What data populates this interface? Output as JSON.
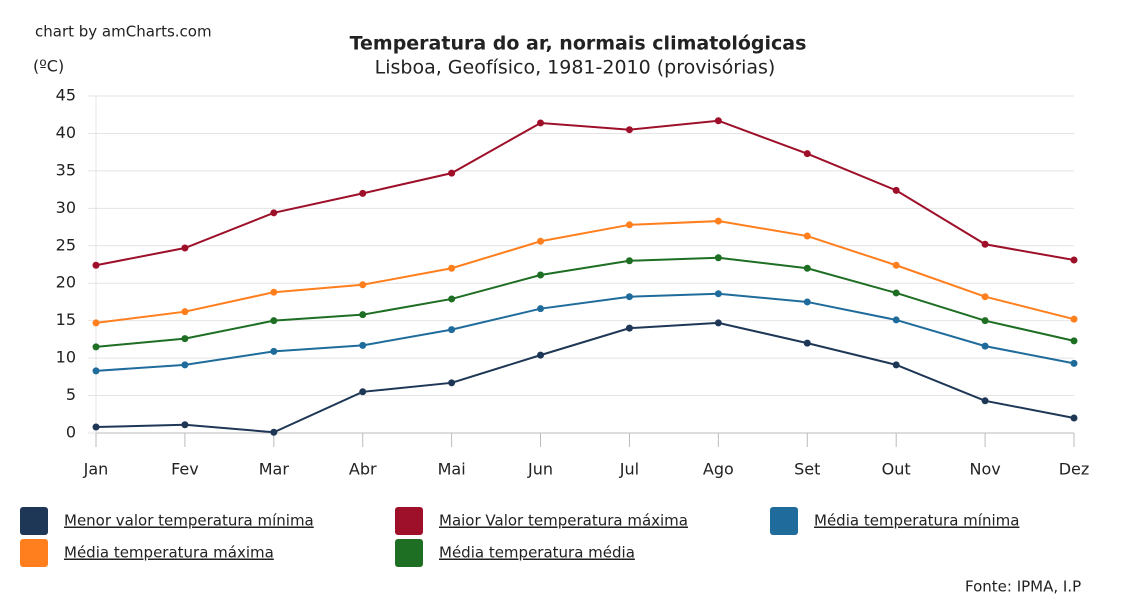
{
  "chart_data": {
    "type": "line",
    "credit": "chart by amCharts.com",
    "title": "Temperatura do ar, normais climatológicas",
    "subtitle": "Lisboa, Geofísico, 1981-2010 (provisórias)",
    "y_label": "(ºC)",
    "source": "Fonte: IPMA, I.P",
    "categories": [
      "Jan",
      "Fev",
      "Mar",
      "Abr",
      "Mai",
      "Jun",
      "Jul",
      "Ago",
      "Set",
      "Out",
      "Nov",
      "Dez"
    ],
    "series": [
      {
        "name": "Menor valor temperatura mínima",
        "color": "#1e3756",
        "values": [
          0.8,
          1.1,
          0.1,
          5.5,
          6.7,
          10.4,
          14.0,
          14.7,
          12.0,
          9.1,
          4.3,
          2.0
        ]
      },
      {
        "name": "Maior Valor temperatura máxima",
        "color": "#9e1029",
        "values": [
          22.4,
          24.7,
          29.4,
          32.0,
          34.7,
          41.4,
          40.5,
          41.7,
          37.3,
          32.4,
          25.2,
          23.1
        ]
      },
      {
        "name": "Média temperatura mínima",
        "color": "#1f6c9c",
        "values": [
          8.3,
          9.1,
          10.9,
          11.7,
          13.8,
          16.6,
          18.2,
          18.6,
          17.5,
          15.1,
          11.6,
          9.3
        ]
      },
      {
        "name": "Média temperatura máxima",
        "color": "#ff7f1e",
        "values": [
          14.7,
          16.2,
          18.8,
          19.8,
          22.0,
          25.6,
          27.8,
          28.3,
          26.3,
          22.4,
          18.2,
          15.2
        ]
      },
      {
        "name": "Média temperatura média",
        "color": "#1e6e23",
        "values": [
          11.5,
          12.6,
          15.0,
          15.8,
          17.9,
          21.1,
          23.0,
          23.4,
          22.0,
          18.7,
          15.0,
          12.3
        ]
      }
    ],
    "ylim": [
      0,
      45
    ],
    "yticks": [
      0,
      5,
      10,
      15,
      20,
      25,
      30,
      35,
      40,
      45
    ],
    "grid": true
  }
}
